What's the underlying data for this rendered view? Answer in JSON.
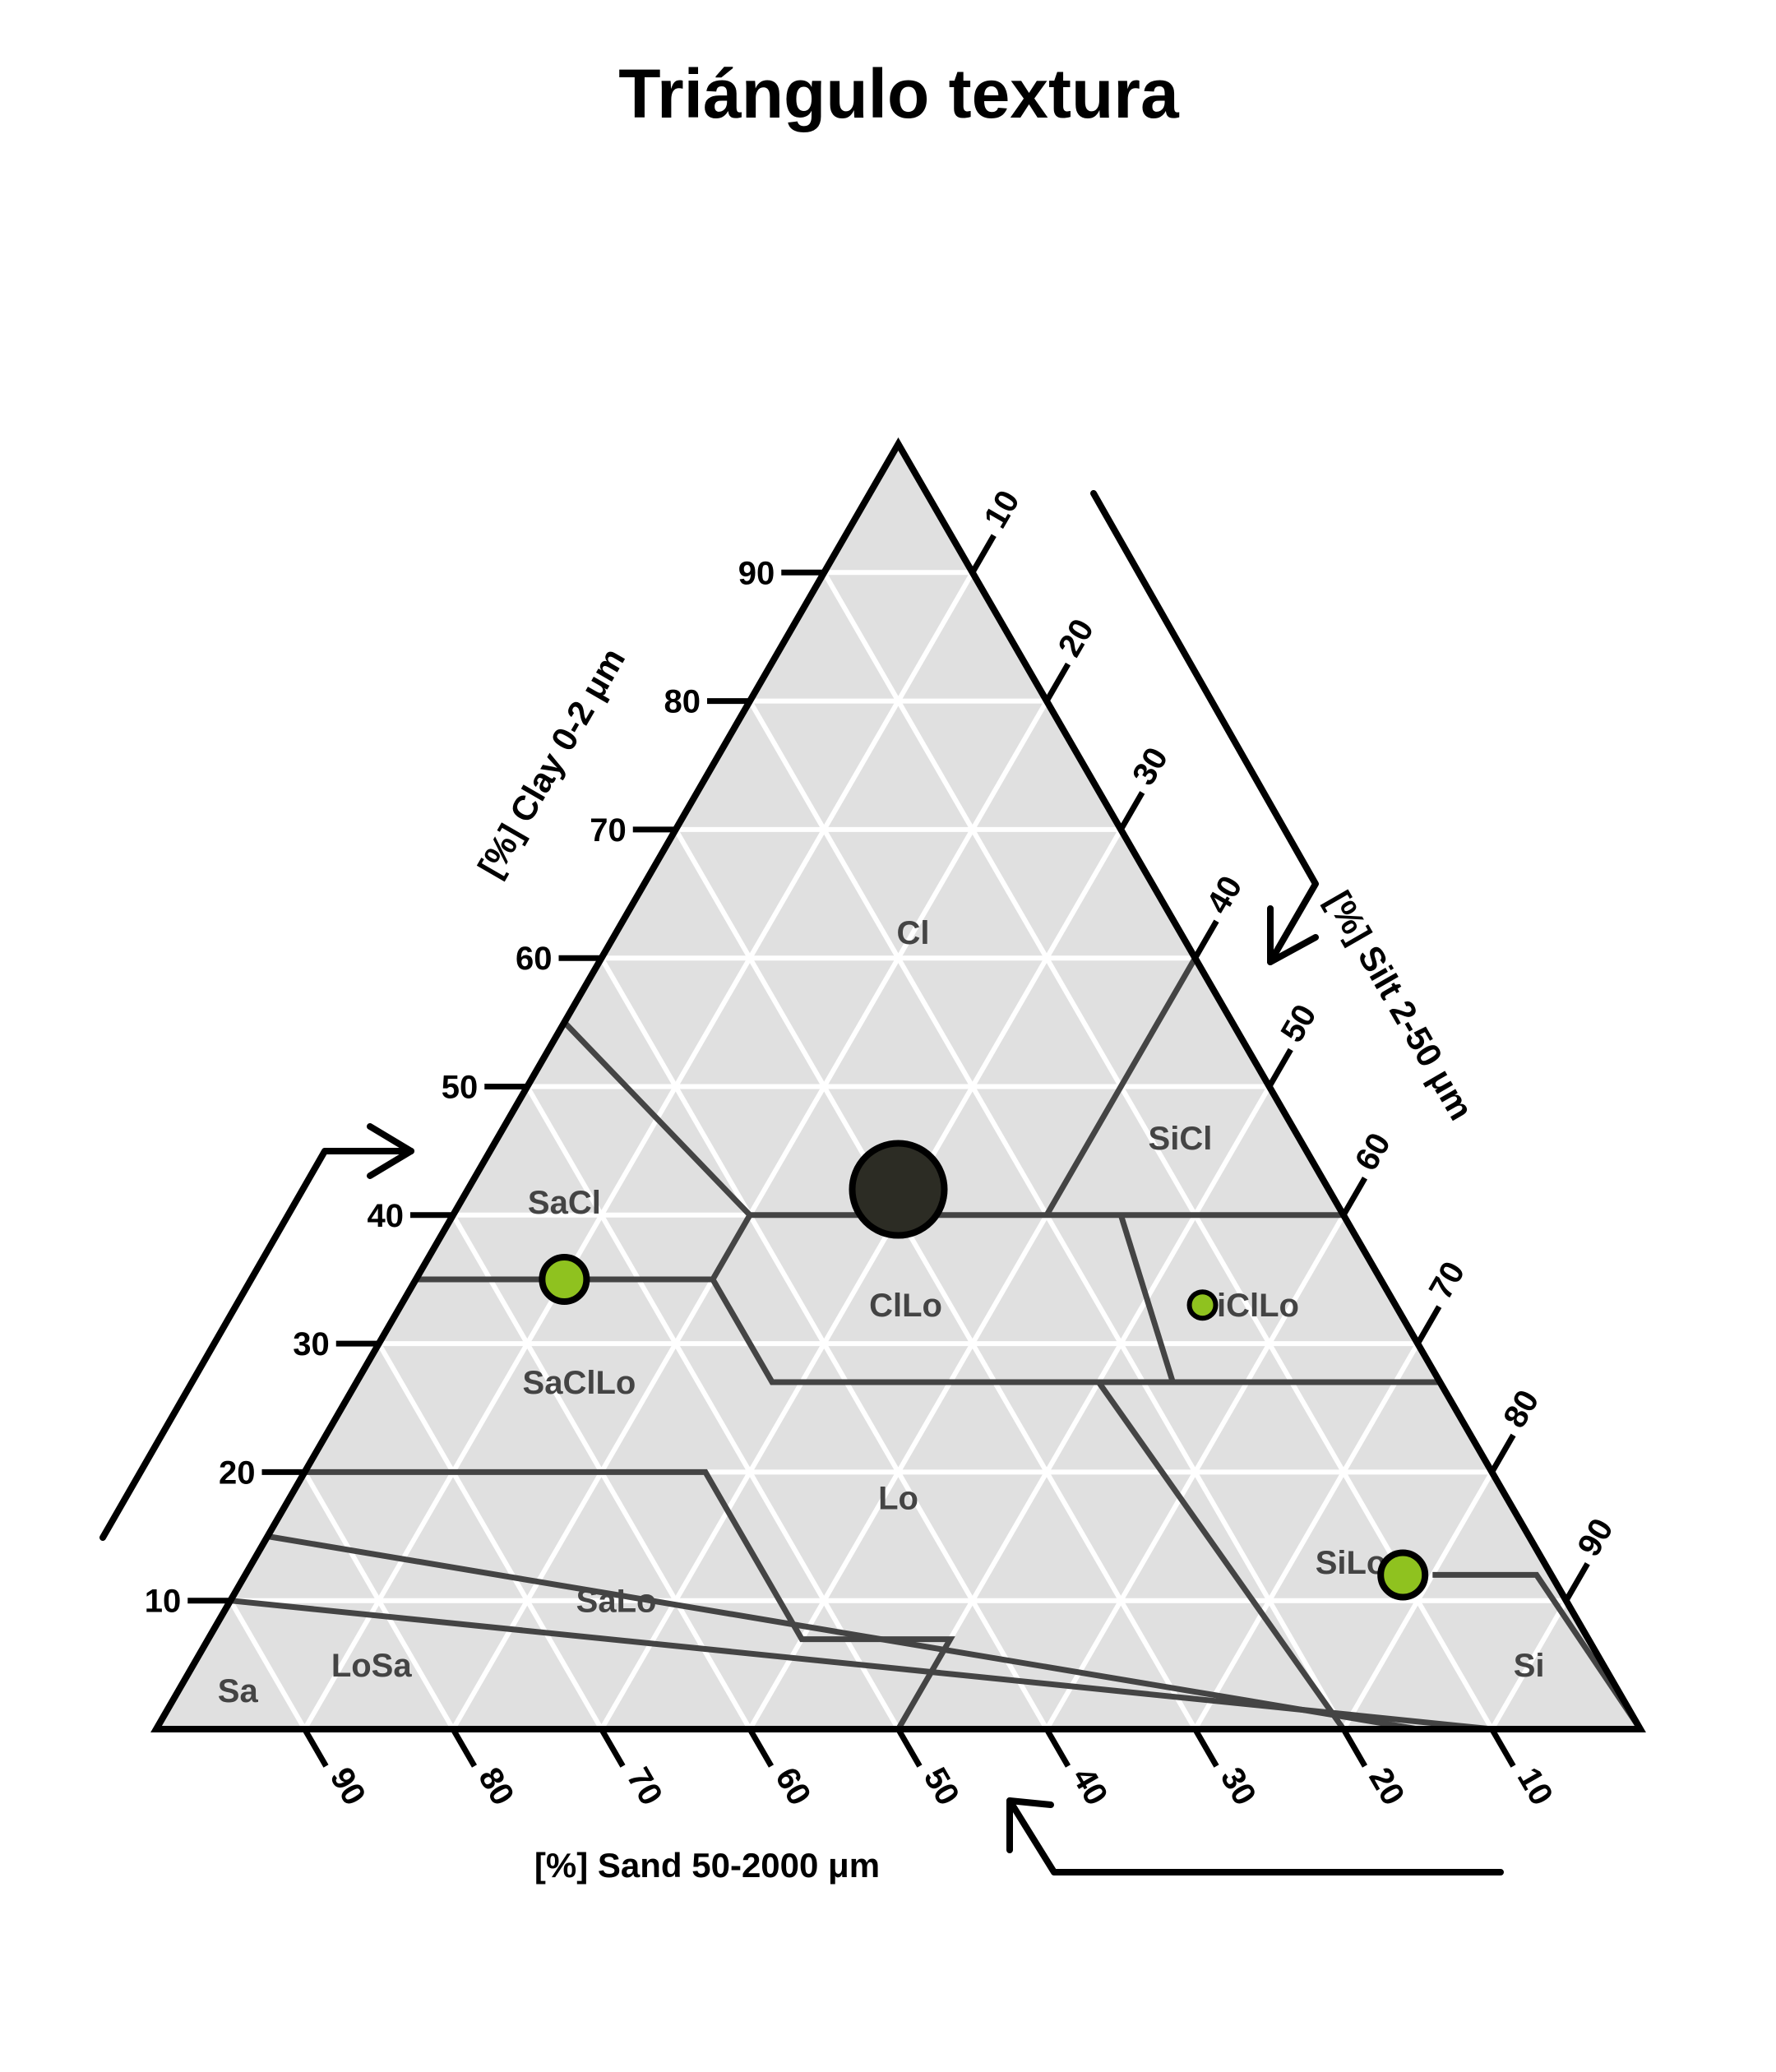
{
  "colors": {
    "triangle_fill": "#e0e0e0",
    "grid": "#ffffff",
    "border": "#000000",
    "class_lines": "#444444",
    "region_text": "#444444",
    "point_green": "#8fc21f",
    "point_dark": "#2c2c24",
    "point_stroke": "#000000"
  },
  "chart_data": {
    "type": "scatter",
    "subtype": "ternary-soil-texture",
    "title": "Triángulo textura",
    "axes": {
      "clay": {
        "label": "[%] Clay 0-2 μm",
        "ticks": [
          "10",
          "20",
          "30",
          "40",
          "50",
          "60",
          "70",
          "80",
          "90"
        ]
      },
      "silt": {
        "label": "[%] Silt 2-50 μm",
        "ticks": [
          "10",
          "20",
          "30",
          "40",
          "50",
          "60",
          "70",
          "80",
          "90"
        ]
      },
      "sand": {
        "label": "[%] Sand 50-2000 μm",
        "ticks": [
          "90",
          "80",
          "70",
          "60",
          "50",
          "40",
          "30",
          "20",
          "10"
        ]
      }
    },
    "grid": true,
    "regions": [
      {
        "label": "Cl",
        "clay": 62,
        "silt": 20
      },
      {
        "label": "SiCl",
        "clay": 46,
        "silt": 46
      },
      {
        "label": "SaCl",
        "clay": 41,
        "silt": 7
      },
      {
        "label": "ClLo",
        "clay": 33,
        "silt": 34
      },
      {
        "label": "SiClLo",
        "clay": 33,
        "silt": 57
      },
      {
        "label": "SaClLo",
        "clay": 27,
        "silt": 15
      },
      {
        "label": "Lo",
        "clay": 18,
        "silt": 41
      },
      {
        "label": "SiLo",
        "clay": 13,
        "silt": 74
      },
      {
        "label": "SaLo",
        "clay": 10,
        "silt": 26
      },
      {
        "label": "LoSa",
        "clay": 5,
        "silt": 12
      },
      {
        "label": "Si",
        "clay": 5,
        "silt": 90
      },
      {
        "label": "Sa",
        "clay": 3,
        "silt": 4
      }
    ],
    "points": [
      {
        "clay": 42,
        "silt": 29,
        "sand": 29,
        "size": "large",
        "color": "point_dark"
      },
      {
        "clay": 35,
        "silt": 10,
        "sand": 55,
        "size": "medium",
        "color": "point_green"
      },
      {
        "clay": 33,
        "silt": 54,
        "sand": 13,
        "size": "small",
        "color": "point_green"
      },
      {
        "clay": 12,
        "silt": 78,
        "sand": 10,
        "size": "medium",
        "color": "point_green"
      }
    ]
  }
}
